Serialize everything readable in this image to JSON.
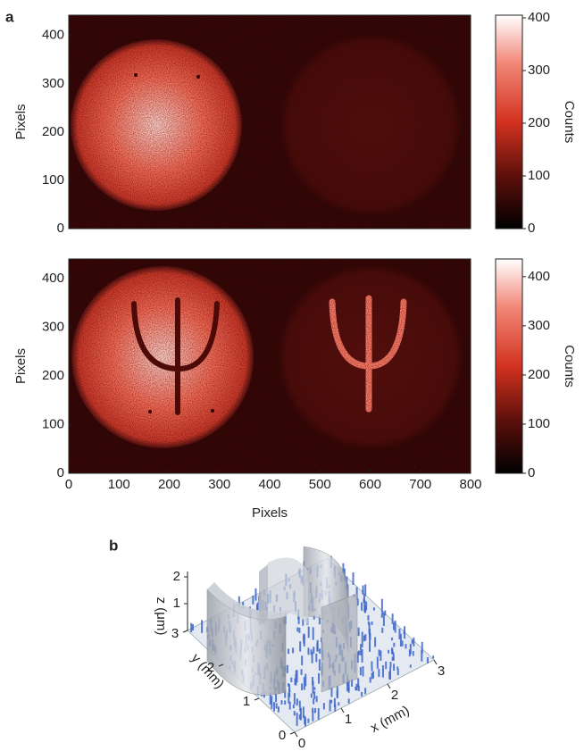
{
  "panel_labels": [
    "a",
    "b"
  ],
  "chart_data": [
    {
      "type": "heatmap",
      "ylabel": "Pixels",
      "ylim": [
        0,
        442
      ],
      "yticks": [
        0,
        100,
        200,
        300,
        400
      ],
      "colorbar": {
        "label": "Counts",
        "lim": [
          0,
          405
        ],
        "ticks": [
          0,
          100,
          200,
          300,
          400
        ]
      }
    },
    {
      "type": "heatmap",
      "xlabel": "Pixels",
      "ylabel": "Pixels",
      "xlim": [
        0,
        800
      ],
      "xticks": [
        0,
        100,
        200,
        300,
        400,
        500,
        600,
        700,
        800
      ],
      "ylim": [
        0,
        440
      ],
      "yticks": [
        0,
        100,
        200,
        300,
        400
      ],
      "colorbar": {
        "label": "Counts",
        "lim": [
          0,
          436
        ],
        "ticks": [
          0,
          100,
          200,
          300,
          400
        ]
      }
    },
    {
      "type": "surface3d",
      "xlabel": "x (mm)",
      "ylabel": "y (mm)",
      "zlabel": "z (μm)",
      "xticks": [
        0,
        1,
        2,
        3
      ],
      "yticks": [
        0,
        1,
        2,
        3
      ],
      "zticks": [
        1,
        2
      ]
    }
  ]
}
